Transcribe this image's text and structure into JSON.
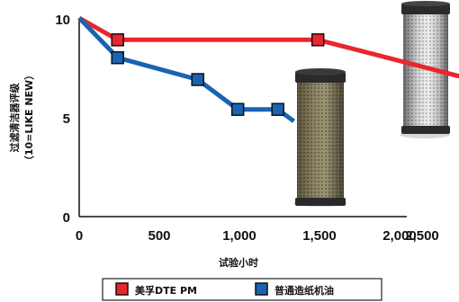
{
  "chart_data": {
    "type": "line",
    "xlabel": "试验小时",
    "ylabel": [
      "过滤清洁器评级",
      "（10=LIKE NEW）"
    ],
    "xlim": [
      0,
      2500
    ],
    "ylim": [
      0,
      10
    ],
    "xticks": [
      "0",
      "500",
      "1,000",
      "1,500",
      "2,000",
      "2,500"
    ],
    "yticks": [
      "0",
      "5",
      "10"
    ],
    "grid": false,
    "legend_position": "bottom",
    "series": [
      {
        "name": "美孚DTE PM",
        "color": "#e8262e",
        "x": [
          0,
          240,
          1490,
          2500
        ],
        "y": [
          10,
          8.9,
          8.9,
          6.8
        ],
        "marker_count": 2
      },
      {
        "name": "普通造纸机油",
        "color": "#1a63b3",
        "x": [
          0,
          240,
          740,
          990,
          1240,
          1340
        ],
        "y": [
          10,
          8.0,
          6.9,
          5.4,
          5.4,
          4.8
        ],
        "marker_count": 4
      }
    ],
    "images": [
      {
        "name": "dirty-filter-photo"
      },
      {
        "name": "clean-filter-photo"
      }
    ]
  }
}
